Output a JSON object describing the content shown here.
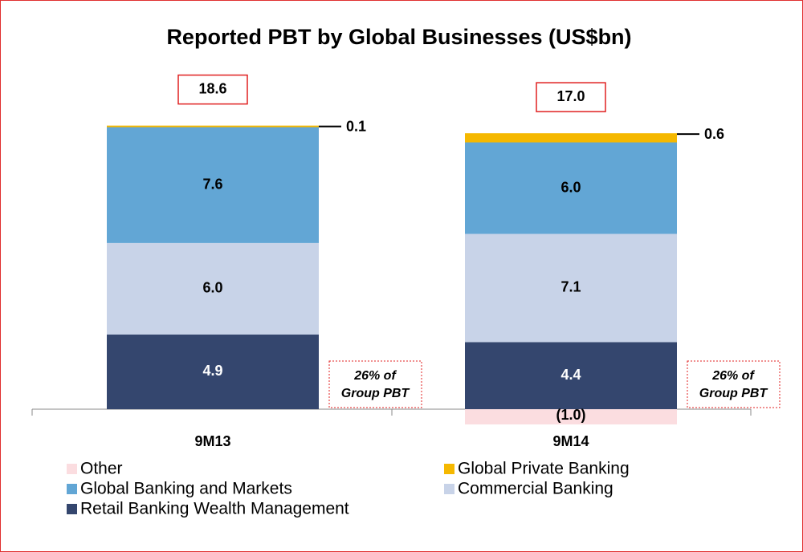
{
  "chart_data": {
    "type": "bar",
    "stacked": true,
    "title": "Reported PBT by Global Businesses (US$bn)",
    "categories": [
      "9M13",
      "9M14"
    ],
    "series": [
      {
        "name": "Retail Banking Wealth Management",
        "color": "#34466e",
        "values": [
          4.9,
          4.4
        ],
        "value_labels": [
          "4.9",
          "4.4"
        ]
      },
      {
        "name": "Commercial Banking",
        "color": "#c8d3e8",
        "values": [
          6.0,
          7.1
        ],
        "value_labels": [
          "6.0",
          "7.1"
        ]
      },
      {
        "name": "Global Banking and Markets",
        "color": "#62a6d5",
        "values": [
          7.6,
          6.0
        ],
        "value_labels": [
          "7.6",
          "6.0"
        ]
      },
      {
        "name": "Global Private Banking",
        "color": "#f5b800",
        "values": [
          0.1,
          0.6
        ],
        "value_labels": [
          "0.1",
          "0.6"
        ]
      },
      {
        "name": "Other",
        "color": "#fbdde0",
        "values": [
          null,
          -1.0
        ],
        "value_labels": [
          null,
          "(1.0)"
        ]
      }
    ],
    "totals": [
      {
        "value": 18.6,
        "label": "18.6"
      },
      {
        "value": 17.0,
        "label": "17.0"
      }
    ],
    "annotations": [
      "26% of Group PBT",
      "26% of Group PBT"
    ],
    "ylim": [
      -3,
      21
    ]
  }
}
